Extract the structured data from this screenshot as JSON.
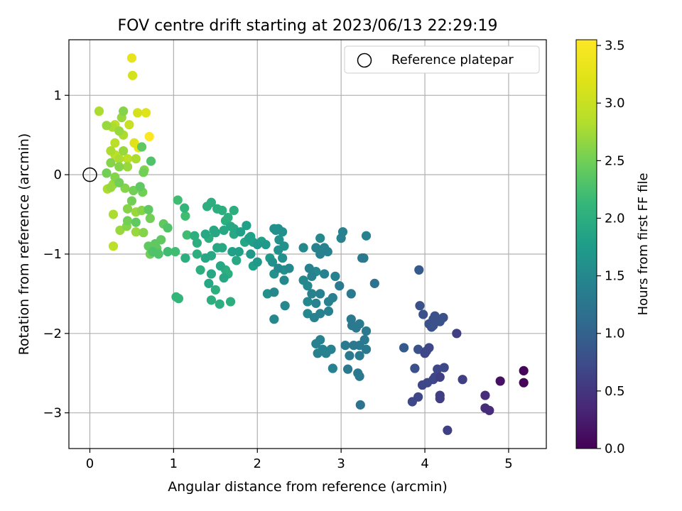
{
  "chart_data": {
    "type": "scatter",
    "title": "FOV centre drift starting at 2023/06/13 22:29:19",
    "xlabel": "Angular distance from reference (arcmin)",
    "ylabel": "Rotation from reference (arcmin)",
    "xlim": [
      -0.25,
      5.45
    ],
    "ylim": [
      -3.45,
      1.7
    ],
    "xticks": [
      0,
      1,
      2,
      3,
      4,
      5
    ],
    "yticks": [
      -3,
      -2,
      -1,
      0,
      1
    ],
    "grid": true,
    "legend": {
      "position": "top-right",
      "entries": [
        "Reference platepar"
      ]
    },
    "reference_point": {
      "x": 0,
      "y": 0
    },
    "colorbar": {
      "label": "Hours from first FF file",
      "colormap": "viridis",
      "range": [
        0,
        3.55
      ],
      "ticks": [
        "0.0",
        "0.5",
        "1.0",
        "1.5",
        "2.0",
        "2.5",
        "3.0",
        "3.5"
      ]
    },
    "points": [
      [
        0.11,
        0.8,
        2.8
      ],
      [
        0.2,
        0.62,
        2.7
      ],
      [
        0.27,
        0.6,
        2.8
      ],
      [
        0.3,
        0.63,
        2.9
      ],
      [
        0.4,
        0.8,
        2.6
      ],
      [
        0.47,
        0.63,
        3.0
      ],
      [
        0.57,
        0.78,
        3.1
      ],
      [
        0.67,
        0.78,
        3.2
      ],
      [
        0.38,
        0.72,
        2.7
      ],
      [
        0.5,
        1.47,
        3.3
      ],
      [
        0.51,
        1.25,
        3.1
      ],
      [
        0.71,
        0.48,
        3.55
      ],
      [
        0.53,
        0.4,
        3.2
      ],
      [
        0.58,
        0.34,
        3.3
      ],
      [
        0.25,
        0.3,
        2.8
      ],
      [
        0.3,
        0.25,
        2.9
      ],
      [
        0.35,
        0.2,
        2.8
      ],
      [
        0.4,
        0.3,
        2.7
      ],
      [
        0.45,
        0.2,
        2.9
      ],
      [
        0.3,
        0.4,
        2.9
      ],
      [
        0.4,
        0.5,
        2.8
      ],
      [
        0.35,
        0.55,
        2.7
      ],
      [
        0.25,
        0.15,
        2.6
      ],
      [
        0.35,
        0.1,
        2.6
      ],
      [
        0.45,
        0.1,
        2.7
      ],
      [
        0.55,
        0.2,
        2.8
      ],
      [
        0.62,
        0.35,
        2.4
      ],
      [
        0.73,
        0.17,
        2.3
      ],
      [
        0.2,
        0.02,
        2.5
      ],
      [
        0.3,
        -0.03,
        2.6
      ],
      [
        0.28,
        -0.12,
        2.7
      ],
      [
        0.35,
        -0.1,
        2.5
      ],
      [
        0.42,
        -0.17,
        2.6
      ],
      [
        0.52,
        -0.2,
        2.5
      ],
      [
        0.6,
        -0.15,
        2.4
      ],
      [
        0.64,
        0.03,
        2.5
      ],
      [
        0.65,
        0.06,
        2.6
      ],
      [
        0.21,
        -0.18,
        2.8
      ],
      [
        0.25,
        -0.16,
        2.7
      ],
      [
        0.63,
        -0.22,
        2.5
      ],
      [
        0.45,
        -0.43,
        2.6
      ],
      [
        0.5,
        -0.33,
        2.5
      ],
      [
        0.55,
        -0.47,
        2.7
      ],
      [
        0.62,
        -0.45,
        2.6
      ],
      [
        0.7,
        -0.44,
        2.4
      ],
      [
        0.28,
        -0.5,
        2.8
      ],
      [
        0.45,
        -0.58,
        2.5
      ],
      [
        0.55,
        -0.6,
        2.4
      ],
      [
        0.72,
        -0.55,
        2.5
      ],
      [
        0.36,
        -0.7,
        2.7
      ],
      [
        0.44,
        -0.65,
        2.6
      ],
      [
        0.55,
        -0.72,
        2.7
      ],
      [
        0.64,
        -0.73,
        2.6
      ],
      [
        0.28,
        -0.9,
        2.9
      ],
      [
        0.7,
        -0.9,
        2.4
      ],
      [
        0.75,
        -0.97,
        2.3
      ],
      [
        0.8,
        -0.93,
        2.4
      ],
      [
        0.82,
        -1.0,
        2.3
      ],
      [
        0.72,
        -1.0,
        2.5
      ],
      [
        0.78,
        -0.87,
        2.4
      ],
      [
        0.85,
        -0.82,
        2.4
      ],
      [
        0.88,
        -0.62,
        2.4
      ],
      [
        0.93,
        -0.67,
        2.3
      ],
      [
        0.93,
        -0.97,
        2.2
      ],
      [
        1.02,
        -0.97,
        2.2
      ],
      [
        1.05,
        -0.32,
        2.2
      ],
      [
        1.13,
        -0.42,
        2.1
      ],
      [
        1.14,
        -0.52,
        2.2
      ],
      [
        1.16,
        -0.76,
        2.2
      ],
      [
        1.25,
        -0.77,
        2.0
      ],
      [
        1.28,
        -0.86,
        2.0
      ],
      [
        1.4,
        -0.4,
        2.0
      ],
      [
        1.45,
        -0.35,
        2.0
      ],
      [
        1.52,
        -0.43,
        2.0
      ],
      [
        1.58,
        -0.45,
        2.0
      ],
      [
        1.62,
        -0.58,
        2.0
      ],
      [
        1.48,
        -0.7,
        1.9
      ],
      [
        1.38,
        -0.75,
        1.9
      ],
      [
        1.42,
        -0.8,
        2.0
      ],
      [
        1.5,
        -0.73,
        1.9
      ],
      [
        1.6,
        -0.7,
        1.9
      ],
      [
        1.68,
        -0.65,
        1.9
      ],
      [
        1.72,
        -0.68,
        1.9
      ],
      [
        1.65,
        -0.54,
        2.0
      ],
      [
        1.72,
        -0.45,
        2.0
      ],
      [
        1.8,
        -0.72,
        1.8
      ],
      [
        1.87,
        -0.64,
        1.8
      ],
      [
        1.72,
        -0.75,
        1.9
      ],
      [
        1.14,
        -1.05,
        2.0
      ],
      [
        1.28,
        -1.0,
        2.0
      ],
      [
        1.38,
        -1.05,
        1.9
      ],
      [
        1.32,
        -1.2,
        2.0
      ],
      [
        1.45,
        -1.02,
        1.9
      ],
      [
        1.52,
        -0.92,
        1.9
      ],
      [
        1.56,
        -1.15,
        1.9
      ],
      [
        1.62,
        -1.2,
        2.0
      ],
      [
        1.58,
        -0.92,
        1.9
      ],
      [
        1.7,
        -0.97,
        1.8
      ],
      [
        1.75,
        -1.08,
        1.9
      ],
      [
        1.78,
        -0.97,
        1.8
      ],
      [
        1.03,
        -1.54,
        2.1
      ],
      [
        1.06,
        -1.56,
        2.1
      ],
      [
        1.42,
        -1.37,
        1.9
      ],
      [
        1.5,
        -1.45,
        2.0
      ],
      [
        1.45,
        -1.58,
        2.0
      ],
      [
        1.55,
        -1.63,
        2.0
      ],
      [
        1.6,
        -1.3,
        1.9
      ],
      [
        1.65,
        -1.25,
        2.0
      ],
      [
        1.68,
        -1.6,
        2.0
      ],
      [
        1.45,
        -1.25,
        1.9
      ],
      [
        1.9,
        -0.8,
        1.8
      ],
      [
        1.95,
        -0.85,
        1.8
      ],
      [
        2.0,
        -0.88,
        1.7
      ],
      [
        2.05,
        -0.84,
        1.8
      ],
      [
        2.1,
        -0.88,
        1.7
      ],
      [
        1.92,
        -1.0,
        1.7
      ],
      [
        2.0,
        -1.1,
        1.7
      ],
      [
        1.95,
        -1.15,
        1.8
      ],
      [
        1.85,
        -0.85,
        1.9
      ],
      [
        1.92,
        -0.78,
        1.8
      ],
      [
        2.22,
        -0.7,
        1.6
      ],
      [
        2.25,
        -0.68,
        1.6
      ],
      [
        2.3,
        -0.72,
        1.6
      ],
      [
        2.2,
        -0.68,
        1.6
      ],
      [
        2.26,
        -0.82,
        1.6
      ],
      [
        2.18,
        -1.1,
        1.6
      ],
      [
        2.25,
        -1.18,
        1.5
      ],
      [
        2.32,
        -1.2,
        1.6
      ],
      [
        2.38,
        -1.18,
        1.5
      ],
      [
        2.3,
        -1.05,
        1.6
      ],
      [
        2.25,
        -0.95,
        1.6
      ],
      [
        2.32,
        -0.9,
        1.6
      ],
      [
        2.15,
        -1.05,
        1.7
      ],
      [
        2.2,
        -1.25,
        1.6
      ],
      [
        2.32,
        -1.33,
        1.5
      ],
      [
        2.12,
        -1.5,
        1.6
      ],
      [
        2.2,
        -1.48,
        1.5
      ],
      [
        2.2,
        -1.82,
        1.5
      ],
      [
        2.33,
        -1.65,
        1.5
      ],
      [
        2.55,
        -0.92,
        1.5
      ],
      [
        2.7,
        -0.92,
        1.4
      ],
      [
        2.75,
        -0.8,
        1.5
      ],
      [
        2.8,
        -0.92,
        1.4
      ],
      [
        2.75,
        -1.0,
        1.4
      ],
      [
        2.84,
        -0.97,
        1.4
      ],
      [
        3.0,
        -0.8,
        1.4
      ],
      [
        3.02,
        -0.72,
        1.4
      ],
      [
        3.25,
        -1.05,
        1.3
      ],
      [
        3.27,
        -1.05,
        1.3
      ],
      [
        3.3,
        -0.77,
        1.4
      ],
      [
        2.55,
        -1.33,
        1.5
      ],
      [
        2.6,
        -1.4,
        1.5
      ],
      [
        2.62,
        -1.18,
        1.4
      ],
      [
        2.7,
        -1.22,
        1.5
      ],
      [
        2.65,
        -1.28,
        1.4
      ],
      [
        2.8,
        -1.25,
        1.4
      ],
      [
        2.75,
        -1.5,
        1.4
      ],
      [
        2.65,
        -1.5,
        1.4
      ],
      [
        2.6,
        -1.6,
        1.5
      ],
      [
        2.7,
        -1.62,
        1.4
      ],
      [
        2.85,
        -1.6,
        1.4
      ],
      [
        2.9,
        -1.55,
        1.4
      ],
      [
        2.93,
        -1.28,
        1.4
      ],
      [
        2.98,
        -1.4,
        1.3
      ],
      [
        3.12,
        -1.5,
        1.3
      ],
      [
        2.6,
        -1.75,
        1.5
      ],
      [
        2.68,
        -1.8,
        1.4
      ],
      [
        2.75,
        -1.75,
        1.4
      ],
      [
        2.85,
        -1.72,
        1.4
      ],
      [
        3.12,
        -1.82,
        1.3
      ],
      [
        3.13,
        -1.9,
        1.3
      ],
      [
        3.18,
        -1.93,
        1.3
      ],
      [
        3.22,
        -1.88,
        1.3
      ],
      [
        3.3,
        -1.97,
        1.3
      ],
      [
        3.4,
        -1.37,
        1.2
      ],
      [
        2.7,
        -2.13,
        1.4
      ],
      [
        2.75,
        -2.08,
        1.4
      ],
      [
        2.78,
        -2.2,
        1.4
      ],
      [
        2.72,
        -2.25,
        1.4
      ],
      [
        2.82,
        -2.25,
        1.4
      ],
      [
        2.88,
        -2.2,
        1.4
      ],
      [
        3.05,
        -2.15,
        1.3
      ],
      [
        3.1,
        -2.28,
        1.3
      ],
      [
        3.15,
        -2.15,
        1.3
      ],
      [
        3.22,
        -2.15,
        1.3
      ],
      [
        3.28,
        -2.08,
        1.3
      ],
      [
        3.3,
        -2.2,
        1.3
      ],
      [
        3.22,
        -2.28,
        1.3
      ],
      [
        2.9,
        -2.44,
        1.4
      ],
      [
        3.08,
        -2.45,
        1.3
      ],
      [
        3.2,
        -2.5,
        1.3
      ],
      [
        3.22,
        -2.54,
        1.3
      ],
      [
        3.23,
        -2.9,
        1.2
      ],
      [
        3.75,
        -2.18,
        0.9
      ],
      [
        3.93,
        -1.2,
        0.9
      ],
      [
        3.94,
        -1.65,
        0.8
      ],
      [
        3.98,
        -1.76,
        0.8
      ],
      [
        4.05,
        -1.88,
        0.8
      ],
      [
        4.1,
        -1.82,
        0.8
      ],
      [
        4.12,
        -1.78,
        0.8
      ],
      [
        4.08,
        -1.92,
        0.8
      ],
      [
        4.1,
        -1.9,
        0.8
      ],
      [
        4.18,
        -1.85,
        0.8
      ],
      [
        4.22,
        -1.8,
        0.8
      ],
      [
        3.92,
        -2.2,
        0.8
      ],
      [
        4.0,
        -2.25,
        0.7
      ],
      [
        4.05,
        -2.18,
        0.7
      ],
      [
        4.02,
        -2.22,
        0.7
      ],
      [
        3.88,
        -2.44,
        0.8
      ],
      [
        3.92,
        -2.8,
        0.7
      ],
      [
        3.85,
        -2.86,
        0.7
      ],
      [
        3.97,
        -2.65,
        0.7
      ],
      [
        4.03,
        -2.62,
        0.7
      ],
      [
        4.1,
        -2.58,
        0.7
      ],
      [
        4.15,
        -2.45,
        0.7
      ],
      [
        4.23,
        -2.43,
        0.7
      ],
      [
        4.12,
        -2.55,
        0.7
      ],
      [
        4.18,
        -2.55,
        0.6
      ],
      [
        4.18,
        -2.78,
        0.6
      ],
      [
        4.18,
        -2.82,
        0.6
      ],
      [
        4.27,
        -3.22,
        0.6
      ],
      [
        4.38,
        -2.0,
        0.6
      ],
      [
        4.45,
        -2.58,
        0.6
      ],
      [
        4.72,
        -2.78,
        0.4
      ],
      [
        4.72,
        -2.94,
        0.4
      ],
      [
        4.77,
        -2.97,
        0.4
      ],
      [
        4.9,
        -2.6,
        0.15
      ],
      [
        5.18,
        -2.47,
        0.05
      ],
      [
        5.18,
        -2.62,
        0.05
      ]
    ]
  }
}
